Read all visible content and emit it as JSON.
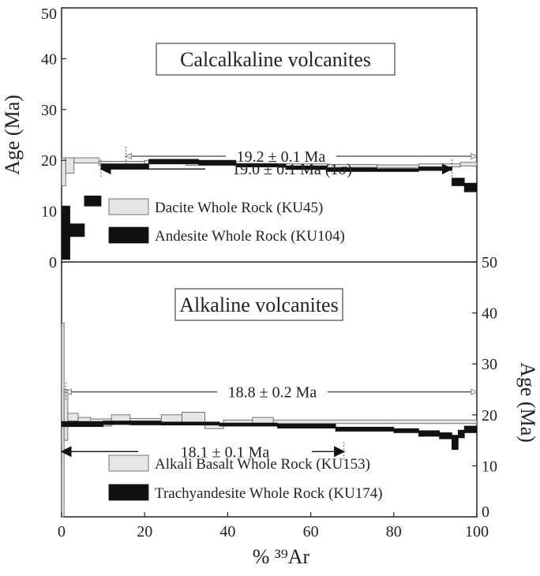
{
  "chart_data": [
    {
      "type": "step-spectrum",
      "title": "Calcalkaline volcanites",
      "xlabel": "% ³⁹Ar",
      "ylabel": "Age (Ma)",
      "xlim": [
        0,
        100
      ],
      "ylim": [
        0,
        50
      ],
      "y_ticks": [
        0,
        10,
        20,
        30,
        40,
        50
      ],
      "y_axis_side": "left",
      "legend": [
        "Dacite Whole Rock (KU45)",
        "Andesite Whole Rock (KU104)"
      ],
      "series": [
        {
          "name": "Dacite Whole Rock (KU45)",
          "color": "#e6e6e6",
          "steps": [
            {
              "x0": 0.0,
              "x1": 1.0,
              "y_low": 15.0,
              "y_high": 20.5
            },
            {
              "x0": 1.0,
              "x1": 3.0,
              "y_low": 17.5,
              "y_high": 20.5
            },
            {
              "x0": 3.0,
              "x1": 9.0,
              "y_low": 19.5,
              "y_high": 20.5
            },
            {
              "x0": 9.0,
              "x1": 20.0,
              "y_low": 19.0,
              "y_high": 19.8
            },
            {
              "x0": 20.0,
              "x1": 30.0,
              "y_low": 19.3,
              "y_high": 20.0
            },
            {
              "x0": 30.0,
              "x1": 42.0,
              "y_low": 19.0,
              "y_high": 19.6
            },
            {
              "x0": 42.0,
              "x1": 52.0,
              "y_low": 18.8,
              "y_high": 19.4
            },
            {
              "x0": 52.0,
              "x1": 64.0,
              "y_low": 18.6,
              "y_high": 19.3
            },
            {
              "x0": 64.0,
              "x1": 76.0,
              "y_low": 18.6,
              "y_high": 19.2
            },
            {
              "x0": 76.0,
              "x1": 86.0,
              "y_low": 18.5,
              "y_high": 19.1
            },
            {
              "x0": 86.0,
              "x1": 96.0,
              "y_low": 18.7,
              "y_high": 19.3
            },
            {
              "x0": 96.0,
              "x1": 100.0,
              "y_low": 18.9,
              "y_high": 19.6
            }
          ]
        },
        {
          "name": "Andesite Whole Rock (KU104)",
          "color": "#111111",
          "steps": [
            {
              "x0": 0.0,
              "x1": 2.0,
              "y_low": 0.5,
              "y_high": 11.0
            },
            {
              "x0": 2.0,
              "x1": 5.5,
              "y_low": 5.0,
              "y_high": 7.5
            },
            {
              "x0": 5.5,
              "x1": 9.5,
              "y_low": 11.0,
              "y_high": 13.0
            },
            {
              "x0": 9.5,
              "x1": 21.0,
              "y_low": 18.3,
              "y_high": 19.3
            },
            {
              "x0": 21.0,
              "x1": 33.0,
              "y_low": 19.3,
              "y_high": 20.2
            },
            {
              "x0": 33.0,
              "x1": 42.0,
              "y_low": 19.1,
              "y_high": 20.0
            },
            {
              "x0": 42.0,
              "x1": 54.0,
              "y_low": 18.7,
              "y_high": 19.3
            },
            {
              "x0": 54.0,
              "x1": 64.0,
              "y_low": 18.2,
              "y_high": 18.9
            },
            {
              "x0": 64.0,
              "x1": 76.0,
              "y_low": 17.8,
              "y_high": 18.5
            },
            {
              "x0": 76.0,
              "x1": 86.0,
              "y_low": 17.8,
              "y_high": 18.3
            },
            {
              "x0": 86.0,
              "x1": 94.0,
              "y_low": 18.0,
              "y_high": 18.7
            },
            {
              "x0": 94.0,
              "x1": 97.0,
              "y_low": 15.0,
              "y_high": 16.5
            },
            {
              "x0": 97.0,
              "x1": 100.0,
              "y_low": 13.8,
              "y_high": 15.5
            }
          ]
        }
      ],
      "plateaus": [
        {
          "label": "19.2 ± 0.1 Ma",
          "x_start": 15.5,
          "x_end": 100.0,
          "y": 20.8,
          "style": "open-arrow"
        },
        {
          "label": "19.0 ± 0.1 Ma (1σ)",
          "x_start": 9.5,
          "x_end": 94.0,
          "y": 18.3,
          "style": "solid-arrow"
        }
      ]
    },
    {
      "type": "step-spectrum",
      "title": "Alkaline volcanites",
      "xlabel": "% ³⁹Ar",
      "ylabel": "Age (Ma)",
      "xlim": [
        0,
        100
      ],
      "ylim": [
        0,
        50
      ],
      "y_ticks": [
        0,
        10,
        20,
        30,
        40,
        50
      ],
      "y_axis_side": "right",
      "x_ticks": [
        0,
        20,
        40,
        60,
        80,
        100
      ],
      "legend": [
        "Alkali Basalt Whole Rock (KU153)",
        "Trachyandesite Whole Rock (KU174)"
      ],
      "series": [
        {
          "name": "Alkali Basalt Whole Rock (KU153)",
          "color": "#e6e6e6",
          "steps": [
            {
              "x0": 0.0,
              "x1": 0.6,
              "y_low": 0.0,
              "y_high": 38.0
            },
            {
              "x0": 0.6,
              "x1": 1.5,
              "y_low": 15.0,
              "y_high": 25.0
            },
            {
              "x0": 1.5,
              "x1": 4.0,
              "y_low": 18.8,
              "y_high": 20.3
            },
            {
              "x0": 4.0,
              "x1": 7.0,
              "y_low": 18.5,
              "y_high": 19.5
            },
            {
              "x0": 7.0,
              "x1": 12.0,
              "y_low": 17.8,
              "y_high": 19.2
            },
            {
              "x0": 12.0,
              "x1": 16.5,
              "y_low": 18.3,
              "y_high": 20.0
            },
            {
              "x0": 16.5,
              "x1": 24.0,
              "y_low": 18.0,
              "y_high": 19.3
            },
            {
              "x0": 24.0,
              "x1": 29.0,
              "y_low": 18.5,
              "y_high": 20.0
            },
            {
              "x0": 29.0,
              "x1": 34.5,
              "y_low": 18.2,
              "y_high": 20.5
            },
            {
              "x0": 34.5,
              "x1": 39.0,
              "y_low": 17.3,
              "y_high": 18.3
            },
            {
              "x0": 39.0,
              "x1": 46.0,
              "y_low": 17.8,
              "y_high": 19.0
            },
            {
              "x0": 46.0,
              "x1": 51.0,
              "y_low": 17.8,
              "y_high": 19.5
            },
            {
              "x0": 51.0,
              "x1": 100.0,
              "y_low": 18.3,
              "y_high": 19.0
            }
          ]
        },
        {
          "name": "Trachyandesite Whole Rock (KU174)",
          "color": "#111111",
          "steps": [
            {
              "x0": 0.0,
              "x1": 10.0,
              "y_low": 17.7,
              "y_high": 18.7
            },
            {
              "x0": 10.0,
              "x1": 24.0,
              "y_low": 18.1,
              "y_high": 18.8
            },
            {
              "x0": 24.0,
              "x1": 38.0,
              "y_low": 18.0,
              "y_high": 18.6
            },
            {
              "x0": 38.0,
              "x1": 52.0,
              "y_low": 17.8,
              "y_high": 18.4
            },
            {
              "x0": 52.0,
              "x1": 66.0,
              "y_low": 17.4,
              "y_high": 18.2
            },
            {
              "x0": 66.0,
              "x1": 80.0,
              "y_low": 16.8,
              "y_high": 17.6
            },
            {
              "x0": 80.0,
              "x1": 86.0,
              "y_low": 16.5,
              "y_high": 17.3
            },
            {
              "x0": 86.0,
              "x1": 91.0,
              "y_low": 15.8,
              "y_high": 16.9
            },
            {
              "x0": 91.0,
              "x1": 94.0,
              "y_low": 15.3,
              "y_high": 16.5
            },
            {
              "x0": 94.0,
              "x1": 95.5,
              "y_low": 13.2,
              "y_high": 16.0
            },
            {
              "x0": 95.5,
              "x1": 97.0,
              "y_low": 15.5,
              "y_high": 17.0
            },
            {
              "x0": 97.0,
              "x1": 100.0,
              "y_low": 16.5,
              "y_high": 17.8
            }
          ]
        }
      ],
      "plateaus": [
        {
          "label": "18.8 ± 0.2 Ma",
          "x_start": 1.0,
          "x_end": 100.0,
          "y": 24.5,
          "style": "open-arrow"
        },
        {
          "label": "18.1 ± 0.1 Ma",
          "x_start": 0.0,
          "x_end": 68.0,
          "y": 12.8,
          "style": "solid-arrow"
        }
      ]
    }
  ]
}
